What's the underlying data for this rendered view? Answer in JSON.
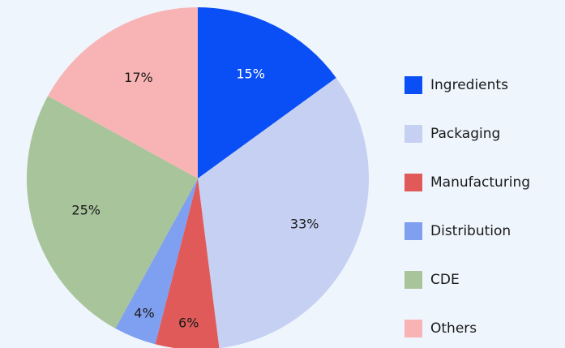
{
  "chart_data": {
    "type": "pie",
    "categories": [
      "Ingredients",
      "Packaging",
      "Manufacturing",
      "Distribution",
      "CDE",
      "Others"
    ],
    "values": [
      15,
      33,
      6,
      4,
      25,
      17
    ],
    "value_labels": [
      "15%",
      "33%",
      "6%",
      "4%",
      "25%",
      "17%"
    ],
    "colors": [
      "#0a4ef5",
      "#c6d0f2",
      "#e05a5a",
      "#7f9ff0",
      "#a8c49a",
      "#f8b4b4"
    ],
    "legend": "right"
  }
}
